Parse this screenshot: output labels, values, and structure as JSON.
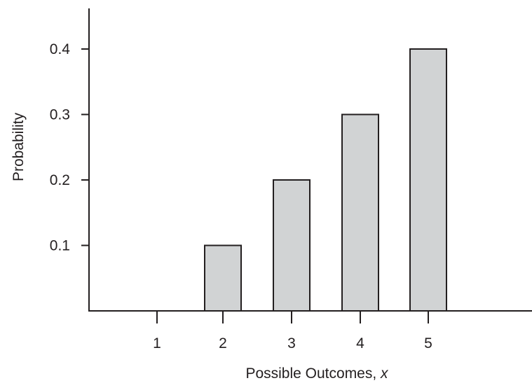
{
  "chart_data": {
    "type": "bar",
    "categories": [
      "1",
      "2",
      "3",
      "4",
      "5"
    ],
    "values": [
      0,
      0.1,
      0.2,
      0.3,
      0.4
    ],
    "xlabel": "Possible Outcomes, ",
    "xlabel_var": "x",
    "ylabel": "Probability",
    "ylim": [
      0,
      0.45
    ],
    "yticks": [
      "0.1",
      "0.2",
      "0.3",
      "0.4"
    ],
    "grid": false,
    "legend": "none",
    "colors": {
      "bar_fill": "#d1d3d4",
      "bar_stroke": "#231f20",
      "axis": "#231f20"
    }
  }
}
